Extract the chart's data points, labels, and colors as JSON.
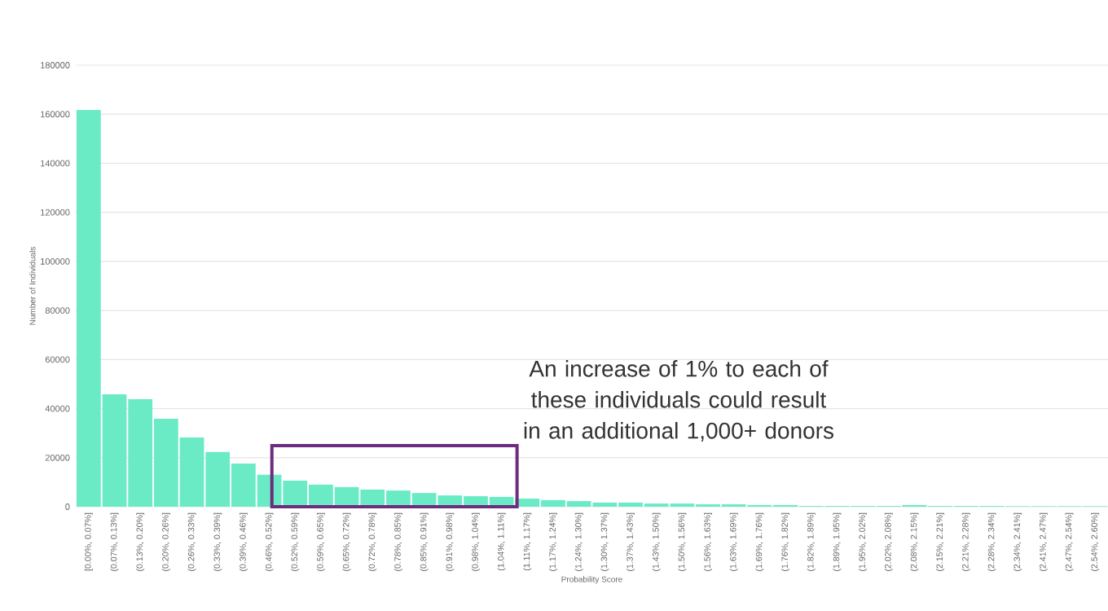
{
  "chart_data": {
    "type": "bar",
    "xlabel": "Probability Score",
    "ylabel": "Number of Individuals",
    "categories": [
      "[0.00%, 0.07%]",
      "(0.07%, 0.13%]",
      "(0.13%, 0.20%]",
      "(0.20%, 0.26%]",
      "(0.26%, 0.33%]",
      "(0.33%, 0.39%]",
      "(0.39%, 0.46%]",
      "(0.46%, 0.52%]",
      "(0.52%, 0.59%]",
      "(0.59%, 0.65%]",
      "(0.65%, 0.72%]",
      "(0.72%, 0.78%]",
      "(0.78%, 0.85%]",
      "(0.85%, 0.91%]",
      "(0.91%, 0.98%]",
      "(0.98%, 1.04%]",
      "(1.04%, 1.11%]",
      "(1.11%, 1.17%]",
      "(1.17%, 1.24%]",
      "(1.24%, 1.30%]",
      "(1.30%, 1.37%]",
      "(1.37%, 1.43%]",
      "(1.43%, 1.50%]",
      "(1.50%, 1.56%]",
      "(1.56%, 1.63%]",
      "(1.63%, 1.69%]",
      "(1.69%, 1.76%]",
      "(1.76%, 1.82%]",
      "(1.82%, 1.89%]",
      "(1.89%, 1.95%]",
      "(1.95%, 2.02%]",
      "(2.02%, 2.08%]",
      "(2.08%, 2.15%]",
      "(2.15%, 2.21%]",
      "(2.21%, 2.28%]",
      "(2.28%, 2.34%]",
      "(2.34%, 2.41%]",
      "(2.41%, 2.47%]",
      "(2.47%, 2.54%]",
      "(2.54%, 2.60%]"
    ],
    "values": [
      161700,
      45800,
      43800,
      35900,
      28200,
      22300,
      17600,
      13000,
      10600,
      9000,
      8000,
      7000,
      6600,
      5600,
      4600,
      4300,
      4000,
      3300,
      2700,
      2300,
      1700,
      1700,
      1300,
      1300,
      1000,
      1000,
      700,
      700,
      300,
      300,
      300,
      300,
      700,
      300,
      300,
      300,
      200,
      200,
      200,
      200
    ],
    "color": "#6aebc6",
    "ylim": [
      0,
      180000
    ],
    "yticks": [
      0,
      20000,
      40000,
      60000,
      80000,
      100000,
      120000,
      140000,
      160000,
      180000
    ],
    "grid": "y",
    "annotations": [
      "An increase of 1% to each of these individuals could result in an additional 1,000+ donors"
    ]
  }
}
